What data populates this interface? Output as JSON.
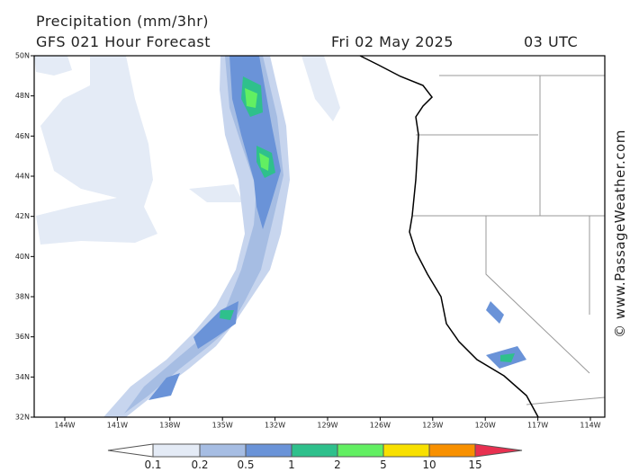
{
  "header": {
    "title": "Precipitation (mm/3hr)",
    "subtitle": "GFS 021 Hour Forecast",
    "date": "Fri 02 May 2025",
    "time": "03 UTC"
  },
  "latitude_labels": [
    "50N",
    "48N",
    "46N",
    "44N",
    "42N",
    "40N",
    "38N",
    "36N",
    "34N",
    "32N"
  ],
  "longitude_labels": [
    "144W",
    "141W",
    "138W",
    "135W",
    "132W",
    "129W",
    "126W",
    "123W",
    "120W",
    "117W",
    "114W"
  ],
  "legend": {
    "labels": [
      "0.1",
      "0.2",
      "0.5",
      "1",
      "2",
      "5",
      "10",
      "15"
    ]
  },
  "watermark": "© www.PassageWeather.com"
}
